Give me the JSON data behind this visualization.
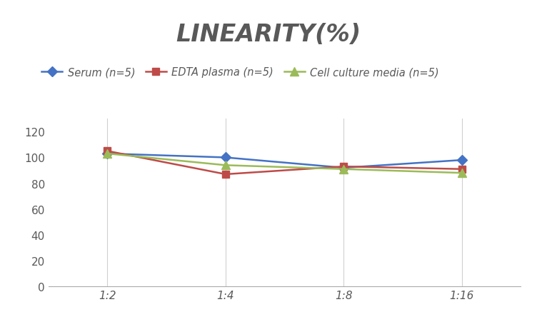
{
  "title": "LINEARITY(%)",
  "x_labels": [
    "1:2",
    "1:4",
    "1:8",
    "1:16"
  ],
  "x_positions": [
    1,
    2,
    3,
    4
  ],
  "series": [
    {
      "label": "Serum (n=5)",
      "values": [
        103,
        100,
        92,
        98
      ],
      "color": "#4472C4",
      "marker": "D",
      "markersize": 7
    },
    {
      "label": "EDTA plasma (n=5)",
      "values": [
        105,
        87,
        93,
        91
      ],
      "color": "#BE4B48",
      "marker": "s",
      "markersize": 7
    },
    {
      "label": "Cell culture media (n=5)",
      "values": [
        103,
        94,
        91,
        88
      ],
      "color": "#9BBB59",
      "marker": "^",
      "markersize": 8
    }
  ],
  "ylim": [
    0,
    130
  ],
  "yticks": [
    0,
    20,
    40,
    60,
    80,
    100,
    120
  ],
  "background_color": "#FFFFFF",
  "title_fontsize": 24,
  "legend_fontsize": 10.5,
  "tick_fontsize": 11,
  "title_color": "#595959",
  "tick_color": "#595959"
}
